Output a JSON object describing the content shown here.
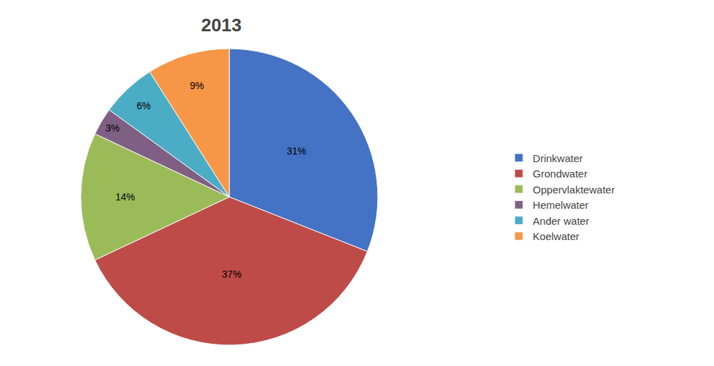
{
  "chart_data": {
    "type": "pie",
    "title": "2013",
    "categories": [
      "Drinkwater",
      "Grondwater",
      "Oppervlaktewater",
      "Hemelwater",
      "Ander water",
      "Koelwater"
    ],
    "values": [
      31,
      37,
      14,
      3,
      6,
      9
    ],
    "value_labels": [
      "31%",
      "37%",
      "14%",
      "3%",
      "6%",
      "9%"
    ],
    "colors": [
      "#4472C4",
      "#BE4B48",
      "#9BBB59",
      "#7F6084",
      "#4BACC6",
      "#F79646"
    ],
    "data_labels": true,
    "legend": "right"
  }
}
